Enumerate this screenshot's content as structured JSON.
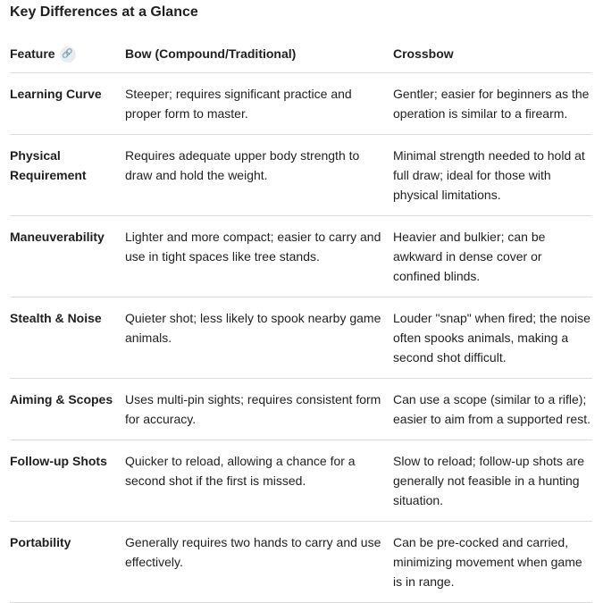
{
  "title": "Key Differences at a Glance",
  "headers": [
    "Feature",
    "Bow (Compound/Traditional)",
    "Crossbow"
  ],
  "header_icon": "link-icon",
  "rows": [
    [
      "Learning Curve",
      "Steeper; requires significant practice and proper form to master.",
      "Gentler; easier for beginners as the operation is similar to a firearm."
    ],
    [
      "Physical Requirement",
      "Requires adequate upper body strength to draw and hold the weight.",
      "Minimal strength needed to hold at full draw; ideal for those with physical limitations."
    ],
    [
      "Maneuverability",
      "Lighter and more compact; easier to carry and use in tight spaces like tree stands.",
      "Heavier and bulkier; can be awkward in dense cover or confined blinds."
    ],
    [
      "Stealth & Noise",
      "Quieter shot; less likely to spook nearby game animals.",
      "Louder \"snap\" when fired; the noise often spooks animals, making a second shot difficult."
    ],
    [
      "Aiming & Scopes",
      "Uses multi-pin sights; requires consistent form for accuracy.",
      "Can use a scope (similar to a rifle); easier to aim from a supported rest."
    ],
    [
      "Follow-up Shots",
      "Quicker to reload, allowing a chance for a second shot if the first is missed.",
      "Slow to reload; follow-up shots are generally not feasible in a hunting situation."
    ],
    [
      "Portability",
      "Generally requires two hands to carry and use effectively.",
      "Can be pre-cocked and carried, minimizing movement when game is in range."
    ]
  ]
}
